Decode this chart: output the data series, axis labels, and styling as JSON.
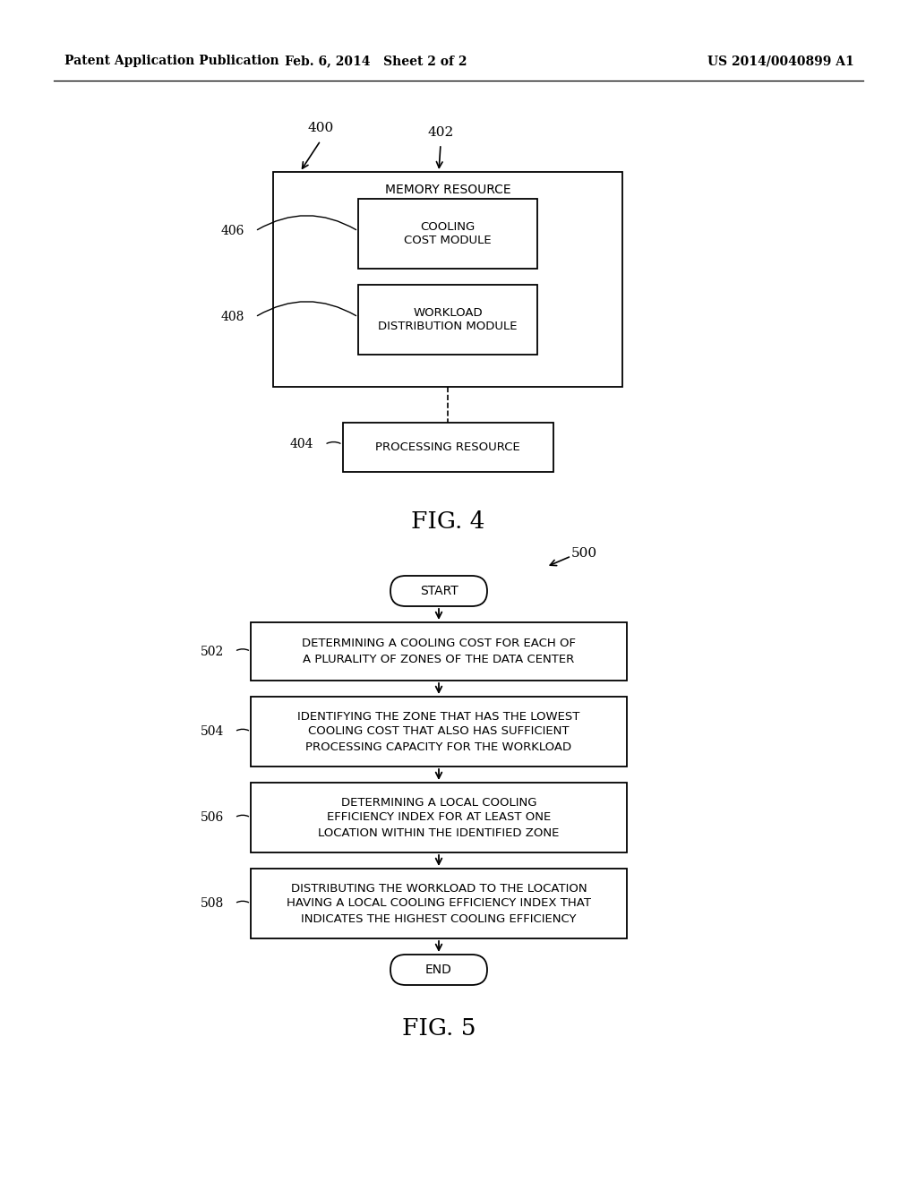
{
  "header_left": "Patent Application Publication",
  "header_mid": "Feb. 6, 2014   Sheet 2 of 2",
  "header_right": "US 2014/0040899 A1",
  "fig4_label": "FIG. 4",
  "fig5_label": "FIG. 5",
  "fig4": {
    "label_400": "400",
    "label_402": "402",
    "memory_text": "MEMORY RESOURCE",
    "cooling_label": "406",
    "cooling_text": "COOLING\nCOST MODULE",
    "workload_label": "408",
    "workload_text": "WORKLOAD\nDISTRIBUTION MODULE",
    "processing_label": "404",
    "processing_text": "PROCESSING RESOURCE"
  },
  "fig5": {
    "label_500": "500",
    "start_text": "START",
    "end_text": "END",
    "step502_label": "502",
    "step502_text": "DETERMINING A COOLING COST FOR EACH OF\nA PLURALITY OF ZONES OF THE DATA CENTER",
    "step504_label": "504",
    "step504_text": "IDENTIFYING THE ZONE THAT HAS THE LOWEST\nCOOLING COST THAT ALSO HAS SUFFICIENT\nPROCESSING CAPACITY FOR THE WORKLOAD",
    "step506_label": "506",
    "step506_text": "DETERMINING A LOCAL COOLING\nEFFICIENCY INDEX FOR AT LEAST ONE\nLOCATION WITHIN THE IDENTIFIED ZONE",
    "step508_label": "508",
    "step508_text": "DISTRIBUTING THE WORKLOAD TO THE LOCATION\nHAVING A LOCAL COOLING EFFICIENCY INDEX THAT\nINDICATES THE HIGHEST COOLING EFFICIENCY"
  },
  "bg_color": "#ffffff",
  "text_color": "#000000",
  "line_color": "#000000"
}
